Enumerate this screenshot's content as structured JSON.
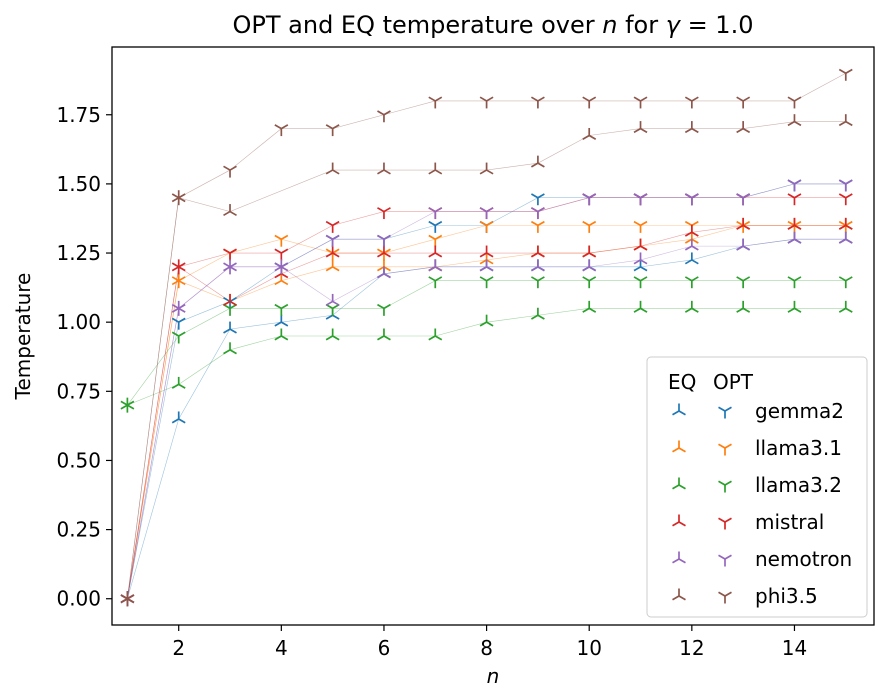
{
  "chart_data": {
    "type": "scatter",
    "title_prefix": "OPT and EQ temperature over ",
    "title_var": "n",
    "title_mid": " for ",
    "title_gamma": "γ",
    "title_eq": " = 1.0",
    "xlabel": "n",
    "ylabel": "Temperature",
    "xlim": [
      0.7,
      15.55
    ],
    "ylim": [
      -0.095,
      1.995
    ],
    "xticks": [
      2,
      4,
      6,
      8,
      10,
      12,
      14
    ],
    "yticks": [
      0.0,
      0.25,
      0.5,
      0.75,
      1.0,
      1.25,
      1.5,
      1.75
    ],
    "ytick_labels": [
      "0.00",
      "0.25",
      "0.50",
      "0.75",
      "1.00",
      "1.25",
      "1.50",
      "1.75"
    ],
    "legend": {
      "position": "lower right",
      "header_eq": "EQ",
      "header_opt": "OPT"
    },
    "x": [
      1,
      2,
      3,
      4,
      5,
      6,
      7,
      8,
      9,
      10,
      11,
      12,
      13,
      14,
      15
    ],
    "series": [
      {
        "name": "gemma2",
        "color": "#1f77b4",
        "eq": [
          0,
          0.65,
          0.975,
          1.0,
          1.025,
          1.175,
          1.2,
          1.2,
          1.2,
          1.2,
          1.2,
          1.225,
          1.275,
          1.3,
          1.3
        ],
        "opt": [
          0,
          1.0,
          1.075,
          1.2,
          1.3,
          1.3,
          1.35,
          1.35,
          1.45,
          1.45,
          1.45,
          1.45,
          1.45,
          1.5,
          1.5
        ]
      },
      {
        "name": "llama3.1",
        "color": "#ff7f0e",
        "eq": [
          0,
          1.15,
          1.075,
          1.15,
          1.2,
          1.2,
          1.2,
          1.225,
          1.25,
          1.25,
          1.275,
          1.3,
          1.35,
          1.35,
          1.35
        ],
        "opt": [
          0,
          1.15,
          1.25,
          1.3,
          1.25,
          1.25,
          1.3,
          1.35,
          1.35,
          1.35,
          1.35,
          1.35,
          1.35,
          1.35,
          1.35
        ]
      },
      {
        "name": "llama3.2",
        "color": "#2ca02c",
        "eq": [
          0.7,
          0.775,
          0.9,
          0.95,
          0.95,
          0.95,
          0.95,
          1.0,
          1.025,
          1.05,
          1.05,
          1.05,
          1.05,
          1.05,
          1.05
        ],
        "opt": [
          0.7,
          0.95,
          1.05,
          1.05,
          1.05,
          1.05,
          1.15,
          1.15,
          1.15,
          1.15,
          1.15,
          1.15,
          1.15,
          1.15,
          1.15
        ]
      },
      {
        "name": "mistral",
        "color": "#d62728",
        "eq": [
          0,
          1.2,
          1.075,
          1.175,
          1.25,
          1.25,
          1.25,
          1.25,
          1.25,
          1.25,
          1.275,
          1.325,
          1.35,
          1.35,
          1.35
        ],
        "opt": [
          0,
          1.2,
          1.25,
          1.25,
          1.35,
          1.4,
          1.4,
          1.4,
          1.4,
          1.45,
          1.45,
          1.45,
          1.45,
          1.45,
          1.45
        ]
      },
      {
        "name": "nemotron",
        "color": "#9467bd",
        "eq": [
          0,
          1.05,
          1.2,
          1.2,
          1.075,
          1.175,
          1.2,
          1.2,
          1.2,
          1.2,
          1.225,
          1.275,
          1.275,
          1.3,
          1.3
        ],
        "opt": [
          0,
          1.05,
          1.2,
          1.2,
          1.3,
          1.3,
          1.4,
          1.4,
          1.4,
          1.45,
          1.45,
          1.45,
          1.45,
          1.5,
          1.5
        ]
      },
      {
        "name": "phi3.5",
        "color": "#8c564b",
        "eq": [
          0,
          1.45,
          1.4,
          null,
          1.55,
          1.55,
          1.55,
          1.55,
          1.575,
          1.675,
          1.7,
          1.7,
          1.7,
          1.725,
          1.725
        ],
        "opt": [
          0,
          1.45,
          1.55,
          1.7,
          1.7,
          1.75,
          1.8,
          1.8,
          1.8,
          1.8,
          1.8,
          1.8,
          1.8,
          1.8,
          1.9
        ]
      }
    ]
  }
}
